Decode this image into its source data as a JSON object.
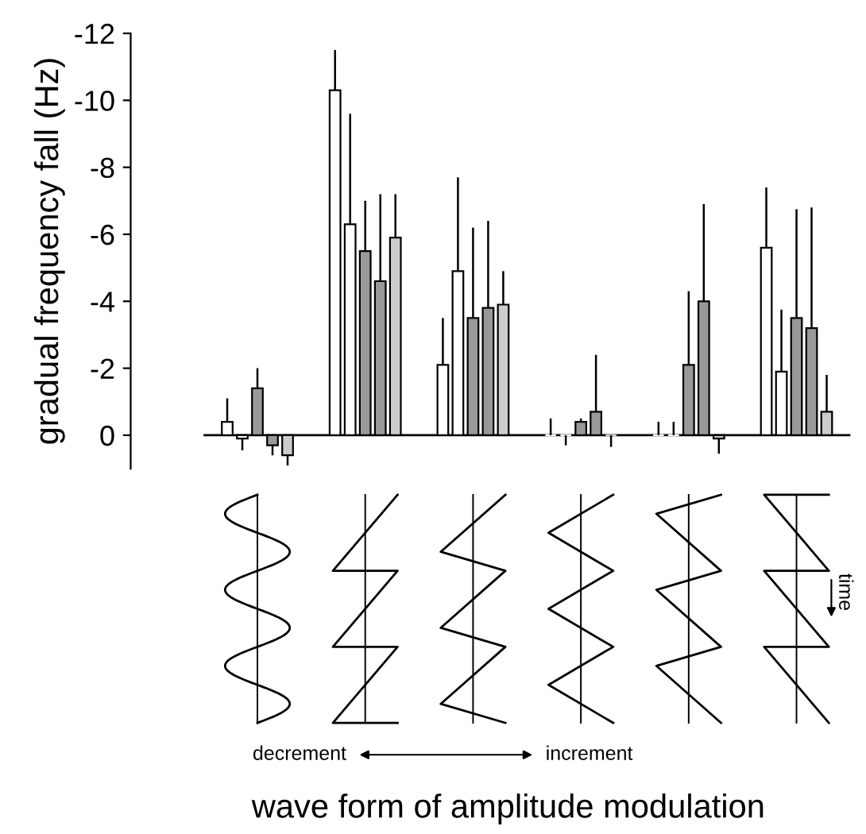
{
  "chart_data": {
    "type": "bar",
    "ylabel": "gradual frequency fall (Hz)",
    "categories": [
      null,
      null,
      null,
      null,
      null,
      null
    ],
    "series": [
      {
        "color": "#ffffff",
        "values": [
          -0.4,
          -10.3,
          -2.1,
          0,
          0,
          -5.6
        ],
        "errors": [
          [
            -1.1,
            -0.4
          ],
          [
            -11.5,
            -10.3
          ],
          [
            -3.5,
            -2.1
          ],
          [
            -0.5,
            0
          ],
          [
            -0.4,
            0
          ],
          [
            -7.4,
            -5.6
          ]
        ]
      },
      {
        "color": "#ffffff",
        "values": [
          0.1,
          -6.3,
          -4.9,
          0,
          0,
          -1.9
        ],
        "errors": [
          [
            0.1,
            0.45
          ],
          [
            -9.6,
            -6.3
          ],
          [
            -7.7,
            -4.9
          ],
          [
            0,
            0.3
          ],
          [
            -0.4,
            0
          ],
          [
            -3.75,
            -1.9
          ]
        ]
      },
      {
        "color": "#999999",
        "values": [
          -1.4,
          -5.5,
          -3.5,
          -0.4,
          -2.1,
          -3.5
        ],
        "errors": [
          [
            -2.0,
            -1.4
          ],
          [
            -7.0,
            -5.5
          ],
          [
            -6.2,
            -3.5
          ],
          [
            -0.5,
            -0.4
          ],
          [
            -4.3,
            -2.1
          ],
          [
            -6.75,
            -3.5
          ]
        ]
      },
      {
        "color": "#999999",
        "values": [
          0.3,
          -4.6,
          -3.8,
          -0.7,
          -4.0,
          -3.2
        ],
        "errors": [
          [
            0.3,
            0.6
          ],
          [
            -7.2,
            -4.6
          ],
          [
            -6.4,
            -3.8
          ],
          [
            -2.4,
            -0.7
          ],
          [
            -6.9,
            -4.0
          ],
          [
            -6.8,
            -3.2
          ]
        ]
      },
      {
        "color": "#cccccc",
        "values": [
          0.6,
          -5.9,
          -3.9,
          0,
          0.1,
          -0.7
        ],
        "errors": [
          [
            0.6,
            0.9
          ],
          [
            -7.2,
            -5.9
          ],
          [
            -4.9,
            -3.9
          ],
          [
            0,
            0.35
          ],
          [
            0.1,
            0.55
          ],
          [
            -1.8,
            -0.7
          ]
        ]
      }
    ],
    "ylim": [
      1,
      -12
    ],
    "yticks": [
      -12,
      -10,
      -8,
      -6,
      -4,
      -2,
      0
    ],
    "tick_labels": "y",
    "ref_lines": [
      {
        "axis": "y",
        "value": 0,
        "color": "#000000"
      }
    ],
    "annotations": [
      "time",
      "decrement",
      "increment",
      "wave form of amplitude modulation"
    ]
  }
}
